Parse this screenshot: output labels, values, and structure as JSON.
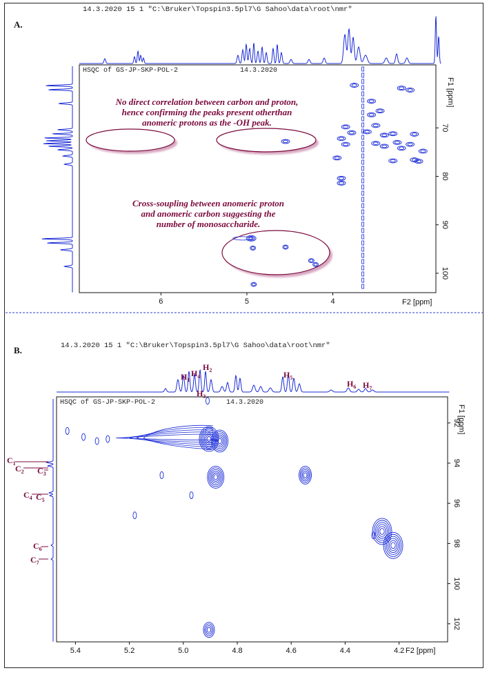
{
  "panels": [
    {
      "label": "A.",
      "header": "14.3.2020   15  1   \"C:\\Bruker\\Topspin3.5pl7\\G Sahoo\\data\\root\\nmr\"",
      "title": "HSQC of GS-JP-SKP-POL-2",
      "date": "14.3.2020",
      "x_axis_label": "F2 [ppm]",
      "y_axis_label": "F1 [ppm]",
      "annotation_top": [
        "No direct correlation between carbon and proton,",
        "hence confirming the peaks present otherthan",
        "anomeric protons as the -OH peak."
      ],
      "annotation_bottom": [
        "Cross-soupling between anomeric proton",
        "and anomeric carbon suggesting the",
        "number of monosaccharide."
      ]
    },
    {
      "label": "B.",
      "header": "14.3.2020   15  1   \"C:\\Bruker\\Topspin3.5pl7\\G Sahoo\\data\\root\\nmr\"",
      "title": "HSQC of GS-JP-SKP-POL-2",
      "date": "14.3.2020",
      "x_axis_label": "F2 [ppm]",
      "y_axis_label": "F1 [ppm]",
      "h_labels": [
        {
          "main": "H",
          "sub": "1"
        },
        {
          "main": "H",
          "sub": "4"
        },
        {
          "main": "H",
          "sub": "2"
        },
        {
          "main": "H",
          "sub": "3"
        },
        {
          "main": "H",
          "sub": "5"
        },
        {
          "main": "H",
          "sub": "6"
        },
        {
          "main": "H",
          "sub": "7"
        }
      ],
      "c_labels": [
        {
          "main": "C",
          "sub": "1"
        },
        {
          "main": "C",
          "sub": "2"
        },
        {
          "main": "C",
          "sub": "3"
        },
        {
          "main": "C",
          "sub": "4"
        },
        {
          "main": "C",
          "sub": "5"
        },
        {
          "main": "C",
          "sub": "6"
        },
        {
          "main": "C",
          "sub": "7"
        }
      ]
    }
  ],
  "chart_data": [
    {
      "type": "scatter",
      "subtype": "2D NMR HSQC contour",
      "xlabel": "F2 [ppm]",
      "ylabel": "F1 [ppm]",
      "x_reversed": true,
      "xlim": [
        6.95,
        2.8
      ],
      "ylim": [
        57,
        104
      ],
      "x_ticks": [
        6,
        5,
        4
      ],
      "y_ticks": [
        70,
        80,
        90,
        100
      ],
      "cross_peaks": [
        {
          "x": 4.95,
          "y": 92.8
        },
        {
          "x": 4.93,
          "y": 94.8
        },
        {
          "x": 4.55,
          "y": 94.6
        },
        {
          "x": 4.25,
          "y": 97.4
        },
        {
          "x": 4.2,
          "y": 98.2
        },
        {
          "x": 4.92,
          "y": 102.3
        },
        {
          "x": 4.55,
          "y": 72.8
        },
        {
          "x": 3.75,
          "y": 61.2
        },
        {
          "x": 3.55,
          "y": 64.5
        },
        {
          "x": 3.45,
          "y": 66.5
        },
        {
          "x": 3.2,
          "y": 61.8
        },
        {
          "x": 3.1,
          "y": 62.2
        },
        {
          "x": 3.55,
          "y": 67.3
        },
        {
          "x": 3.5,
          "y": 69.5
        },
        {
          "x": 3.85,
          "y": 69.8
        },
        {
          "x": 3.78,
          "y": 71.0
        },
        {
          "x": 3.6,
          "y": 70.8
        },
        {
          "x": 3.4,
          "y": 71.5
        },
        {
          "x": 3.3,
          "y": 71.2
        },
        {
          "x": 3.05,
          "y": 71.3
        },
        {
          "x": 3.25,
          "y": 73.0
        },
        {
          "x": 3.5,
          "y": 73.2
        },
        {
          "x": 3.85,
          "y": 73.4
        },
        {
          "x": 3.9,
          "y": 72.2
        },
        {
          "x": 3.4,
          "y": 73.8
        },
        {
          "x": 3.2,
          "y": 74.2
        },
        {
          "x": 3.1,
          "y": 73.4
        },
        {
          "x": 2.95,
          "y": 74.8
        },
        {
          "x": 3.05,
          "y": 76.6
        },
        {
          "x": 3.3,
          "y": 76.8
        },
        {
          "x": 3.0,
          "y": 76.9
        },
        {
          "x": 3.95,
          "y": 76.2
        },
        {
          "x": 3.9,
          "y": 80.4
        },
        {
          "x": 3.9,
          "y": 81.4
        }
      ]
    },
    {
      "type": "scatter",
      "subtype": "2D NMR HSQC contour (anomeric region)",
      "xlabel": "F2 [ppm]",
      "ylabel": "F1 [ppm]",
      "x_reversed": true,
      "xlim": [
        5.47,
        4.02
      ],
      "ylim": [
        90.7,
        102.9
      ],
      "x_ticks": [
        5.4,
        5.2,
        5.0,
        4.8,
        4.6,
        4.4,
        4.2
      ],
      "y_ticks": [
        92,
        94,
        96,
        98,
        100,
        102
      ],
      "cross_peaks": [
        {
          "x": 4.905,
          "y": 92.8
        },
        {
          "x": 4.865,
          "y": 92.9
        },
        {
          "x": 4.88,
          "y": 94.7
        },
        {
          "x": 4.548,
          "y": 94.6
        },
        {
          "x": 4.263,
          "y": 97.4
        },
        {
          "x": 4.222,
          "y": 98.1
        },
        {
          "x": 4.905,
          "y": 102.3
        },
        {
          "x": 4.97,
          "y": 95.6
        },
        {
          "x": 5.08,
          "y": 94.6
        },
        {
          "x": 5.18,
          "y": 96.6
        },
        {
          "x": 5.43,
          "y": 92.4
        },
        {
          "x": 5.37,
          "y": 92.7
        },
        {
          "x": 5.32,
          "y": 92.9
        },
        {
          "x": 5.28,
          "y": 92.8
        },
        {
          "x": 4.91,
          "y": 90.9
        },
        {
          "x": 4.295,
          "y": 97.6
        }
      ]
    }
  ]
}
